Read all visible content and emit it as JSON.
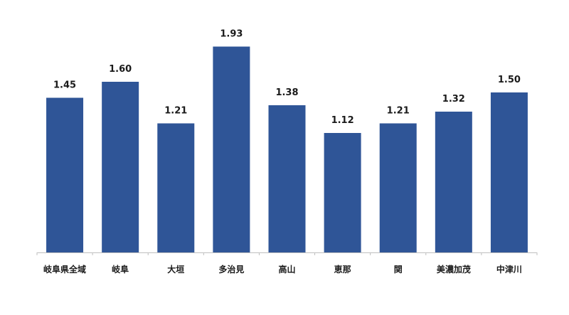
{
  "chart_data": {
    "type": "bar",
    "title": "",
    "xlabel": "",
    "ylabel": "",
    "categories": [
      "岐阜県全域",
      "岐阜",
      "大垣",
      "多治見",
      "高山",
      "恵那",
      "関",
      "美濃加茂",
      "中津川"
    ],
    "values": [
      1.45,
      1.6,
      1.21,
      1.93,
      1.38,
      1.12,
      1.21,
      1.32,
      1.5
    ],
    "value_labels": [
      "1.45",
      "1.60",
      "1.21",
      "1.93",
      "1.38",
      "1.12",
      "1.21",
      "1.32",
      "1.50"
    ],
    "ylim": [
      0,
      2.0
    ],
    "grid": false,
    "legend": "none",
    "bar_color": "#2F5597"
  }
}
